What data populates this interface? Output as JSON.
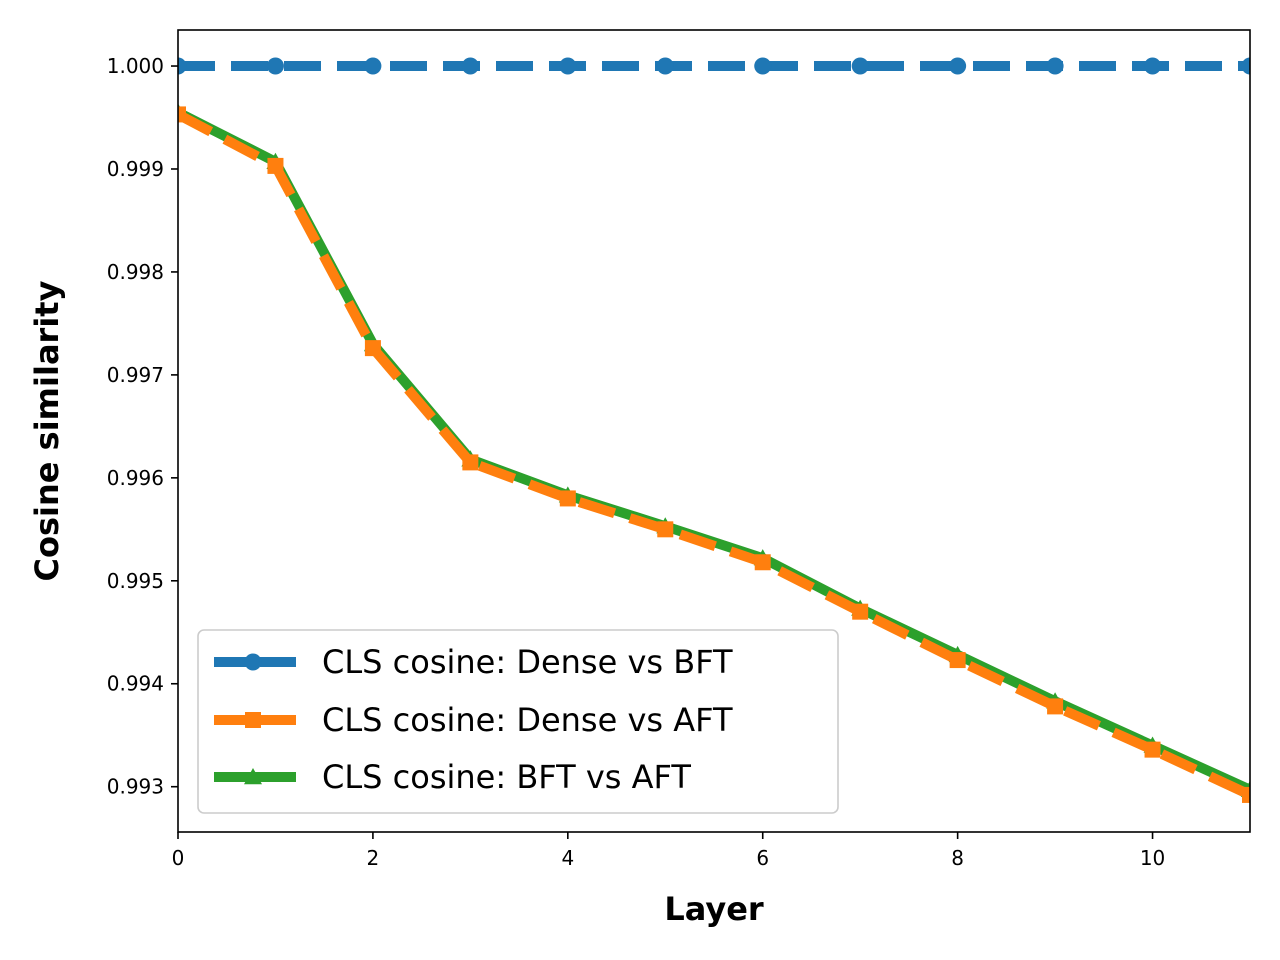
{
  "chart_data": {
    "type": "line",
    "title": "",
    "xlabel": "Layer",
    "ylabel": "Cosine similarity",
    "xlim": [
      0,
      11
    ],
    "ylim": [
      0.99256,
      1.00035
    ],
    "x": [
      0,
      1,
      2,
      3,
      4,
      5,
      6,
      7,
      8,
      9,
      10,
      11
    ],
    "xticks": [
      0,
      2,
      4,
      6,
      8,
      10
    ],
    "yticks": [
      0.993,
      0.994,
      0.995,
      0.996,
      0.997,
      0.998,
      0.999,
      1.0
    ],
    "x_tick_labels": [
      "0",
      "2",
      "4",
      "6",
      "8",
      "10"
    ],
    "y_tick_labels": [
      "0.993",
      "0.994",
      "0.995",
      "0.996",
      "0.997",
      "0.998",
      "0.999",
      "1.000"
    ],
    "grid": false,
    "legend_position": "lower-left",
    "series": [
      {
        "name": "CLS cosine: Dense vs BFT",
        "color": "#1f77b4",
        "line_style": "dashed",
        "marker": "circle",
        "values": [
          1.0,
          1.0,
          1.0,
          1.0,
          1.0,
          1.0,
          1.0,
          1.0,
          1.0,
          1.0,
          1.0,
          1.0
        ]
      },
      {
        "name": "CLS cosine: Dense vs AFT",
        "color": "#ff7f0e",
        "line_style": "dashed",
        "marker": "square",
        "values": [
          0.99953,
          0.99903,
          0.99726,
          0.99615,
          0.9958,
          0.9955,
          0.99518,
          0.9947,
          0.99423,
          0.99378,
          0.99336,
          0.99292
        ]
      },
      {
        "name": "CLS cosine: BFT vs AFT",
        "color": "#2ca02c",
        "line_style": "solid",
        "marker": "triangle",
        "values": [
          0.99955,
          0.99907,
          0.9973,
          0.99618,
          0.99583,
          0.99553,
          0.99522,
          0.99473,
          0.99428,
          0.99383,
          0.9934,
          0.99297
        ]
      }
    ]
  }
}
